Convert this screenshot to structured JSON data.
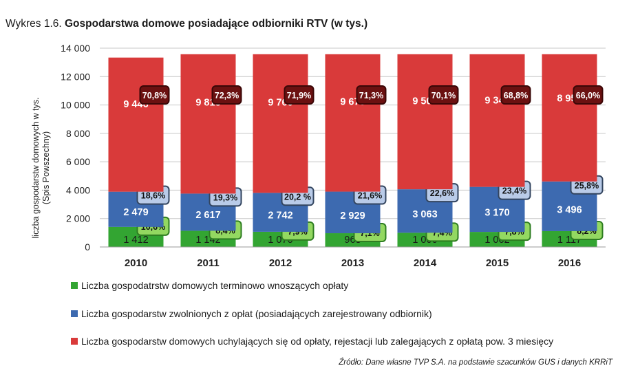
{
  "title": {
    "prefix": "Wykres 1.6.",
    "main": "Gospodarstwa domowe posiadające odbiorniki RTV (w tys.)"
  },
  "source": "Źródło: Dane własne TVP S.A. na podstawie szacunków GUS i danych KRRiT",
  "colors": {
    "green": "#33a532",
    "blue": "#3d6ab0",
    "red": "#d93a3a",
    "red_badge": "#6b1111",
    "blue_badge": "#b9cbe8",
    "green_badge": "#93d861",
    "grid": "#c8c8c8"
  },
  "chart_data": {
    "type": "bar",
    "stacked": true,
    "ylabel": "liczba gospodarstw domowych w tys. (Spis Powszechny)",
    "ylim": [
      0,
      14000
    ],
    "yticks": [
      0,
      2000,
      4000,
      6000,
      8000,
      10000,
      12000,
      14000
    ],
    "ytick_labels": [
      "0",
      "2 000",
      "4 000",
      "6 000",
      "8 000",
      "10 000",
      "12 000",
      "14 000"
    ],
    "grid": true,
    "categories": [
      "2010",
      "2011",
      "2012",
      "2013",
      "2014",
      "2015",
      "2016"
    ],
    "series": [
      {
        "name": "Liczba gospodatrstw domowych terminowo wnoszących opłaty",
        "color": "#33a532",
        "values": [
          1412,
          1142,
          1070,
          968,
          1000,
          1062,
          1117
        ],
        "value_labels": [
          "1 412",
          "1 142",
          "1 070",
          "968",
          "1 000",
          "1 062",
          "1 117"
        ],
        "share_labels": [
          "10,6%",
          "8,4%",
          "7,9%",
          "7,1%",
          "7,4%",
          "7,8%",
          "8,2%"
        ]
      },
      {
        "name": "Liczba gospodarstw zwolnionych z opłat (posiadających zarejestrowany odbiornik)",
        "color": "#3d6ab0",
        "values": [
          2479,
          2617,
          2742,
          2929,
          3063,
          3170,
          3496
        ],
        "value_labels": [
          "2 479",
          "2 617",
          "2 742",
          "2 929",
          "3 063",
          "3 170",
          "3 496"
        ],
        "share_labels": [
          "18,6%",
          "19,3%",
          "20,2 %",
          "21,6%",
          "22,6%",
          "23,4%",
          "25,8%"
        ]
      },
      {
        "name": "Liczba gospodarstw domowych uchylających się od opłaty, rejestacji lub zalegających z opłatą pow. 3 miesięcy",
        "color": "#d93a3a",
        "values": [
          9446,
          9813,
          9760,
          9675,
          9509,
          9340,
          8959
        ],
        "value_labels": [
          "9 446",
          "9 813",
          "9 760",
          "9 675",
          "9 509",
          "9 340",
          "8 959"
        ],
        "share_labels": [
          "70,8%",
          "72,3%",
          "71,9%",
          "71,3%",
          "70,1%",
          "68,8%",
          "66,0%"
        ]
      }
    ],
    "legend_position": "bottom"
  }
}
